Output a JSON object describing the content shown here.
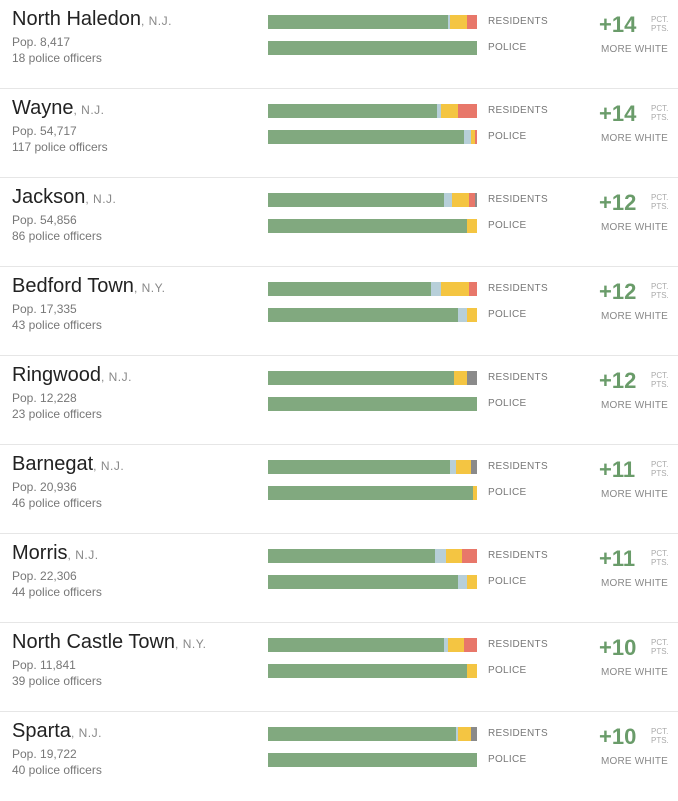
{
  "colors": {
    "white": "#81a97f",
    "asian": "#b7cfd9",
    "hispanic": "#f4c542",
    "black": "#e8776a",
    "other": "#8a8a8a"
  },
  "labels": {
    "residents": "RESIDENTS",
    "police": "POLICE",
    "unit_line1": "PCT.",
    "unit_line2": "PTS.",
    "more_white": "MORE WHITE"
  },
  "chart_data": {
    "type": "bar",
    "orientation": "horizontal-stacked",
    "segments": [
      "white",
      "asian",
      "hispanic",
      "black",
      "other"
    ],
    "rows": [
      {
        "town": "North Haledon",
        "state": ", N.J.",
        "pop": "Pop. 8,417",
        "officers": "18 police officers",
        "delta": "+14",
        "residents": [
          86,
          1,
          8,
          5,
          0
        ],
        "police": [
          100,
          0,
          0,
          0,
          0
        ]
      },
      {
        "town": "Wayne",
        "state": ", N.J.",
        "pop": "Pop. 54,717",
        "officers": "117 police officers",
        "delta": "+14",
        "residents": [
          81,
          2,
          8,
          9,
          0
        ],
        "police": [
          94,
          3,
          2,
          1,
          0
        ]
      },
      {
        "town": "Jackson",
        "state": ", N.J.",
        "pop": "Pop. 54,856",
        "officers": "86 police officers",
        "delta": "+12",
        "residents": [
          84,
          4,
          8,
          3,
          1
        ],
        "police": [
          95,
          0,
          5,
          0,
          0
        ]
      },
      {
        "town": "Bedford Town",
        "state": ", N.Y.",
        "pop": "Pop. 17,335",
        "officers": "43 police officers",
        "delta": "+12",
        "residents": [
          78,
          5,
          13,
          4,
          0
        ],
        "police": [
          91,
          4,
          5,
          0,
          0
        ]
      },
      {
        "town": "Ringwood",
        "state": ", N.J.",
        "pop": "Pop. 12,228",
        "officers": "23 police officers",
        "delta": "+12",
        "residents": [
          89,
          0,
          6,
          0,
          5
        ],
        "police": [
          100,
          0,
          0,
          0,
          0
        ]
      },
      {
        "town": "Barnegat",
        "state": ", N.J.",
        "pop": "Pop. 20,936",
        "officers": "46 police officers",
        "delta": "+11",
        "residents": [
          87,
          3,
          7,
          0,
          3
        ],
        "police": [
          98,
          0,
          2,
          0,
          0
        ]
      },
      {
        "town": "Morris",
        "state": ", N.J.",
        "pop": "Pop. 22,306",
        "officers": "44 police officers",
        "delta": "+11",
        "residents": [
          80,
          5,
          8,
          7,
          0
        ],
        "police": [
          91,
          4,
          5,
          0,
          0
        ]
      },
      {
        "town": "North Castle Town",
        "state": ", N.Y.",
        "pop": "Pop. 11,841",
        "officers": "39 police officers",
        "delta": "+10",
        "residents": [
          84,
          2,
          8,
          6,
          0
        ],
        "police": [
          95,
          0,
          5,
          0,
          0
        ]
      },
      {
        "town": "Sparta",
        "state": ", N.J.",
        "pop": "Pop. 19,722",
        "officers": "40 police officers",
        "delta": "+10",
        "residents": [
          90,
          1,
          6,
          0,
          3
        ],
        "police": [
          100,
          0,
          0,
          0,
          0
        ]
      }
    ]
  }
}
